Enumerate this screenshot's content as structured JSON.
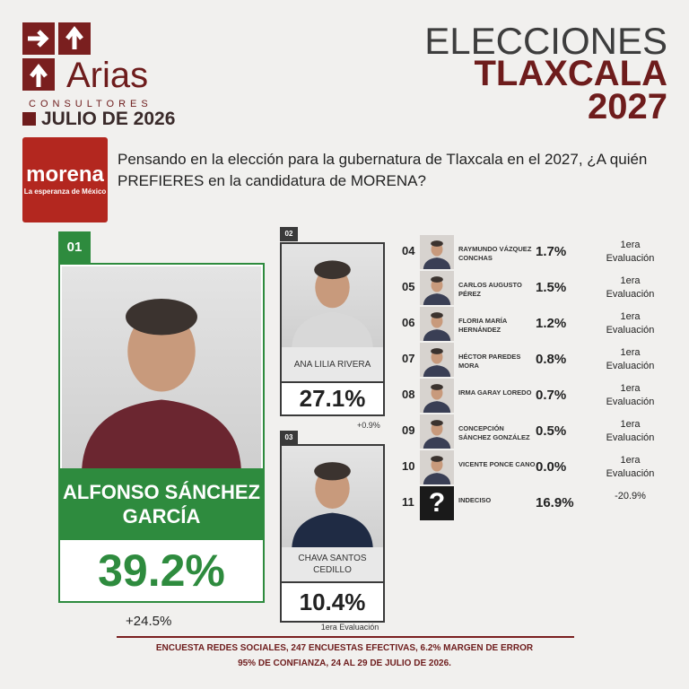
{
  "brand": {
    "name": "Arias",
    "tagline": "CONSULTORES",
    "date": "JULIO DE 2026"
  },
  "header": {
    "line1": "ELECCIONES",
    "line2": "TLAXCALA",
    "line3": "2027"
  },
  "party": {
    "name": "morena",
    "tagline": "La esperanza de México"
  },
  "question": "Pensando en la elección para la gubernatura de Tlaxcala en el 2027, ¿A quién PREFIERES en la candidatura de MORENA?",
  "candidates": [
    {
      "rank": "01",
      "name": "ALFONSO SÁNCHEZ GARCÍA",
      "value": "39.2%",
      "change": "+24.5%"
    },
    {
      "rank": "02",
      "name": "ANA LILIA RIVERA",
      "value": "27.1%",
      "change": "+0.9%"
    },
    {
      "rank": "03",
      "name": "CHAVA SANTOS CEDILLO",
      "value": "10.4%",
      "change": "1era Evaluación"
    }
  ],
  "others": [
    {
      "rank": "04",
      "name": "RAYMUNDO VÁZQUEZ CONCHAS",
      "value": "1.7%",
      "change": "1era Evaluación"
    },
    {
      "rank": "05",
      "name": "CARLOS AUGUSTO PÉREZ",
      "value": "1.5%",
      "change": "1era Evaluación"
    },
    {
      "rank": "06",
      "name": "FLORIA MARÍA HERNÁNDEZ",
      "value": "1.2%",
      "change": "1era Evaluación"
    },
    {
      "rank": "07",
      "name": "HÉCTOR PAREDES MORA",
      "value": "0.8%",
      "change": "1era Evaluación"
    },
    {
      "rank": "08",
      "name": "IRMA GARAY LOREDO",
      "value": "0.7%",
      "change": "1era Evaluación"
    },
    {
      "rank": "09",
      "name": "CONCEPCIÓN SÁNCHEZ GONZÁLEZ",
      "value": "0.5%",
      "change": "1era Evaluación"
    },
    {
      "rank": "10",
      "name": "VICENTE PONCE CANO",
      "value": "0.0%",
      "change": "1era Evaluación"
    },
    {
      "rank": "11",
      "name": "INDECISO",
      "value": "16.9%",
      "change": "-20.9%"
    }
  ],
  "footer": {
    "line1": "ENCUESTA REDES SOCIALES, 247 ENCUESTAS EFECTIVAS, 6.2%  MARGEN DE ERROR",
    "line2": "95% DE CONFIANZA, 24 AL 29 DE JULIO DE 2026."
  }
}
